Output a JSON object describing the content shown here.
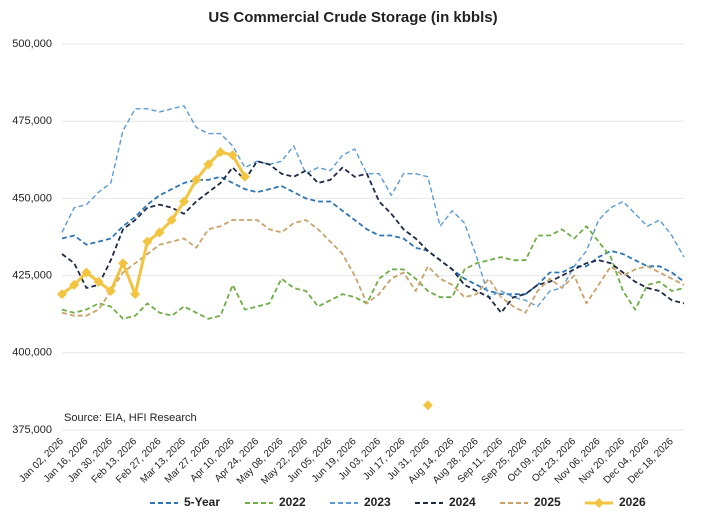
{
  "chart_data": {
    "type": "line",
    "title": "US Commercial Crude Storage (in kbbls)",
    "annotation": "Source: EIA, HFI Research",
    "categories": [
      "Jan 02, 2026",
      null,
      "Jan 16, 2026",
      null,
      "Jan 30, 2026",
      null,
      "Feb 13, 2026",
      null,
      "Feb 27, 2026",
      null,
      "Mar 13, 2026",
      null,
      "Mar 27, 2026",
      null,
      "Apr 10, 2026",
      null,
      "Apr 24, 2026",
      null,
      "May 08, 2026",
      null,
      "May 22, 2026",
      null,
      "Jun 05, 2026",
      null,
      "Jun 19, 2026",
      null,
      "Jul 03, 2026",
      null,
      "Jul 17, 2026",
      null,
      "Jul 31, 2026",
      null,
      "Aug 14, 2026",
      null,
      "Aug 28, 2026",
      null,
      "Sep 11, 2026",
      null,
      "Sep 25, 2026",
      null,
      "Oct 09, 2026",
      null,
      "Oct 23, 2026",
      null,
      "Nov 06, 2026",
      null,
      "Nov 20, 2026",
      null,
      "Dec 04, 2026",
      null,
      "Dec 18, 2026",
      null
    ],
    "ylim": [
      375000,
      500000
    ],
    "yticks": [
      {
        "value": 375000,
        "label": "375,000"
      },
      {
        "value": 400000,
        "label": "400,000"
      },
      {
        "value": 425000,
        "label": "425,000"
      },
      {
        "value": 450000,
        "label": "450,000"
      },
      {
        "value": 475000,
        "label": "475,000"
      },
      {
        "value": 500000,
        "label": "500,000"
      }
    ],
    "grid": true,
    "legend": "bottom",
    "series": [
      {
        "name": "5-Year",
        "color": "#2e75b6",
        "line_style": "dashed",
        "values": [
          437000,
          438000,
          435000,
          436000,
          437000,
          441000,
          444000,
          448000,
          451000,
          453000,
          455000,
          456000,
          456000,
          457000,
          455000,
          453000,
          452000,
          453000,
          454000,
          452000,
          450000,
          449000,
          449000,
          446000,
          443000,
          440000,
          438000,
          438000,
          437000,
          434000,
          433000,
          430000,
          427000,
          424000,
          422000,
          420000,
          419000,
          419000,
          419000,
          422000,
          426000,
          426000,
          428000,
          428000,
          431000,
          433000,
          432000,
          430000,
          428000,
          428000,
          426000,
          423000
        ]
      },
      {
        "name": "2022",
        "color": "#70ad47",
        "line_style": "dashed",
        "values": [
          414000,
          413000,
          414000,
          416000,
          415000,
          411000,
          412000,
          416000,
          413000,
          412000,
          415000,
          413000,
          411000,
          412000,
          422000,
          414000,
          415000,
          416000,
          424000,
          421000,
          420000,
          415000,
          417000,
          419000,
          418000,
          416000,
          424000,
          427000,
          427000,
          424000,
          420000,
          418000,
          418000,
          427000,
          429000,
          430000,
          431000,
          430000,
          430000,
          438000,
          438000,
          440000,
          437000,
          441000,
          436000,
          431000,
          420000,
          414000,
          422000,
          423000,
          420000,
          421000
        ]
      },
      {
        "name": "2023",
        "color": "#5b9bd5",
        "line_style": "dashed",
        "values": [
          439000,
          447000,
          448000,
          452000,
          455000,
          472000,
          479000,
          479000,
          478000,
          479000,
          480000,
          473000,
          471000,
          471000,
          467000,
          460000,
          462000,
          461000,
          462000,
          467000,
          458000,
          460000,
          459000,
          464000,
          466000,
          458000,
          458000,
          451000,
          458000,
          458000,
          457000,
          441000,
          446000,
          442000,
          431000,
          418000,
          420000,
          418000,
          417000,
          415000,
          420000,
          421000,
          428000,
          433000,
          443000,
          447000,
          449000,
          445000,
          441000,
          443000,
          438000,
          431000
        ]
      },
      {
        "name": "2024",
        "color": "#1f2a44",
        "line_style": "dashed",
        "values": [
          432000,
          429000,
          421000,
          422000,
          430000,
          440000,
          443000,
          447000,
          448000,
          447000,
          445000,
          449000,
          452000,
          455000,
          460000,
          456000,
          462000,
          461000,
          458000,
          457000,
          459000,
          455000,
          456000,
          460000,
          457000,
          458000,
          449000,
          445000,
          440000,
          437000,
          433000,
          430000,
          427000,
          422000,
          420000,
          418000,
          413000,
          418000,
          419000,
          422000,
          423000,
          425000,
          427000,
          429000,
          430000,
          429000,
          426000,
          423000,
          421000,
          420000,
          417000,
          416000
        ]
      },
      {
        "name": "2025",
        "color": "#c9a36a",
        "line_style": "dashed",
        "values": [
          413000,
          412000,
          412000,
          414000,
          420000,
          426000,
          429000,
          432000,
          435000,
          436000,
          437000,
          434000,
          440000,
          441000,
          443000,
          443000,
          443000,
          440000,
          439000,
          442000,
          443000,
          440000,
          436000,
          432000,
          425000,
          416000,
          419000,
          424000,
          426000,
          420000,
          428000,
          424000,
          422000,
          418000,
          419000,
          424000,
          418000,
          415000,
          413000,
          420000,
          424000,
          421000,
          425000,
          416000,
          422000,
          428000,
          425000,
          427000,
          428000,
          426000,
          424000,
          422000
        ]
      },
      {
        "name": "2026",
        "color": "#f2c440",
        "line_style": "solid",
        "marker": "diamond",
        "values": [
          419000,
          422000,
          426000,
          423000,
          420000,
          429000,
          419000,
          436000,
          439000,
          443000,
          449000,
          456000,
          461000,
          465000,
          464000,
          457000,
          null,
          null,
          null,
          null,
          null,
          null,
          null,
          null,
          null,
          null,
          null,
          null,
          null,
          null,
          383000,
          null,
          null,
          null,
          null,
          null,
          null,
          null,
          null,
          null,
          null,
          null,
          null,
          null,
          null,
          null,
          null,
          null,
          null,
          null,
          null,
          null
        ]
      }
    ]
  }
}
